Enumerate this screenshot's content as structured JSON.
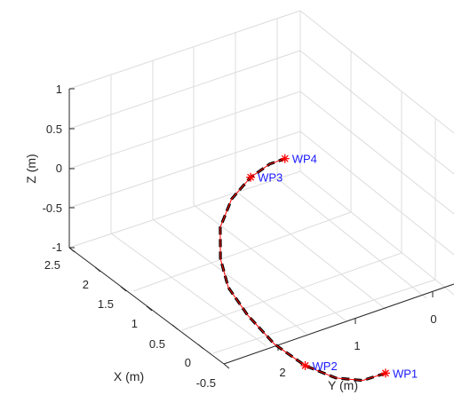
{
  "chart_data": {
    "type": "line3d",
    "title": "",
    "axes": {
      "x": {
        "label": "X (m)",
        "ticks": [
          -0.5,
          0,
          0.5,
          1,
          1.5,
          2,
          2.5
        ],
        "tick_labels": [
          "-0.5",
          "0",
          "0.5",
          "1",
          "1.5",
          "2",
          "2.5"
        ],
        "lim": [
          -0.5,
          2.5
        ]
      },
      "y": {
        "label": "Y (m)",
        "ticks": [
          0,
          1,
          2
        ],
        "tick_labels": [
          "0",
          "1",
          "2"
        ],
        "lim": [
          -0.5,
          2.5
        ]
      },
      "z": {
        "label": "Z (m)",
        "ticks": [
          -1,
          -0.5,
          0,
          0.5,
          1
        ],
        "tick_labels": [
          "-1",
          "-0.5",
          "0",
          "0.5",
          "1"
        ],
        "lim": [
          -1,
          1
        ]
      }
    },
    "grid": true,
    "series": [
      {
        "style": "dashed",
        "color": "#000000",
        "points": [
          [
            1.2,
            2.3,
            -0.8
          ],
          [
            1.5,
            2.3,
            -0.65
          ],
          [
            1.75,
            2.2,
            -0.45
          ],
          [
            1.95,
            2.0,
            -0.2
          ],
          [
            2.05,
            1.7,
            0.05
          ],
          [
            2.05,
            1.35,
            0.3
          ],
          [
            1.95,
            1.0,
            0.45
          ],
          [
            1.75,
            0.7,
            0.55
          ],
          [
            1.45,
            0.4,
            0.6
          ],
          [
            1.05,
            0.15,
            0.55
          ],
          [
            0.65,
            0.0,
            0.45
          ],
          [
            0.3,
            -0.1,
            0.3
          ],
          [
            0.05,
            -0.15,
            0.15
          ]
        ]
      },
      {
        "style": "solid",
        "color": "#ff0000",
        "points": [
          [
            1.2,
            2.3,
            -0.8
          ],
          [
            1.5,
            2.3,
            -0.65
          ],
          [
            1.75,
            2.2,
            -0.45
          ],
          [
            1.95,
            2.0,
            -0.2
          ],
          [
            2.05,
            1.7,
            0.05
          ],
          [
            2.05,
            1.35,
            0.3
          ],
          [
            1.95,
            1.0,
            0.45
          ],
          [
            1.75,
            0.7,
            0.55
          ],
          [
            1.45,
            0.4,
            0.6
          ],
          [
            1.05,
            0.15,
            0.55
          ],
          [
            0.65,
            0.0,
            0.45
          ],
          [
            0.3,
            -0.1,
            0.3
          ],
          [
            0.05,
            -0.15,
            0.15
          ]
        ]
      }
    ],
    "waypoints": [
      {
        "label": "WP1",
        "point": [
          1.2,
          2.3,
          -0.8
        ]
      },
      {
        "label": "WP2",
        "point": [
          1.95,
          2.0,
          -0.2
        ]
      },
      {
        "label": "WP3",
        "point": [
          0.65,
          0.0,
          0.45
        ]
      },
      {
        "label": "WP4",
        "point": [
          0.05,
          -0.15,
          0.15
        ]
      }
    ],
    "colors": {
      "path_dash": "#000000",
      "path_line": "#ff0000",
      "marker": "#ff0000",
      "waypoint_label": "#1a1aff",
      "grid": "#dcdcdc"
    }
  }
}
